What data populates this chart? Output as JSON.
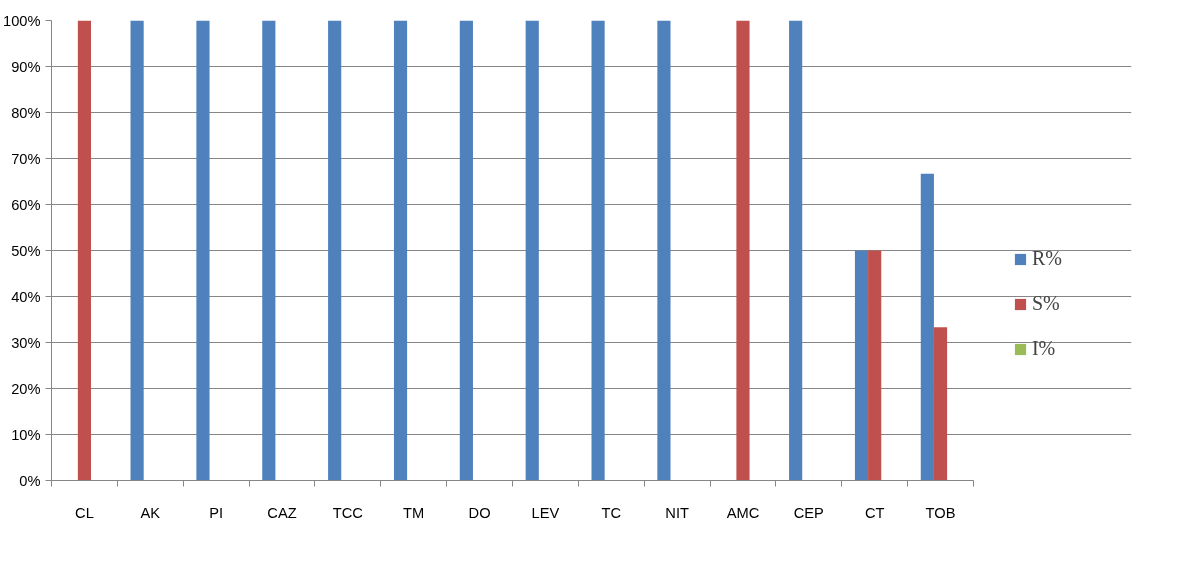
{
  "chart_data": {
    "type": "bar",
    "categories": [
      "CL",
      "AK",
      "PI",
      "CAZ",
      "TCC",
      "TM",
      "DO",
      "LEV",
      "TC",
      "NIT",
      "AMC",
      "CEP",
      "CT",
      "TOB"
    ],
    "series": [
      {
        "name": "R%",
        "color": "#4f81bd",
        "values": [
          0,
          100,
          100,
          100,
          100,
          100,
          100,
          100,
          100,
          100,
          0,
          100,
          50,
          66.7
        ]
      },
      {
        "name": "S%",
        "color": "#c0504d",
        "values": [
          100,
          0,
          0,
          0,
          0,
          0,
          0,
          0,
          0,
          0,
          100,
          0,
          50,
          33.3
        ]
      },
      {
        "name": "I%",
        "color": "#9bbb59",
        "values": [
          0,
          0,
          0,
          0,
          0,
          0,
          0,
          0,
          0,
          0,
          0,
          0,
          0,
          0
        ]
      }
    ],
    "ylim": [
      0,
      100
    ],
    "yticks": [
      {
        "value": 0,
        "label": "0%"
      },
      {
        "value": 10,
        "label": "10%"
      },
      {
        "value": 20,
        "label": "20%"
      },
      {
        "value": 30,
        "label": "30%"
      },
      {
        "value": 40,
        "label": "40%"
      },
      {
        "value": 50,
        "label": "50%"
      },
      {
        "value": 60,
        "label": "60%"
      },
      {
        "value": 70,
        "label": "70%"
      },
      {
        "value": 80,
        "label": "80%"
      },
      {
        "value": 90,
        "label": "90%"
      },
      {
        "value": 100,
        "label": "100%"
      }
    ],
    "grid": "y",
    "legend": "right"
  }
}
